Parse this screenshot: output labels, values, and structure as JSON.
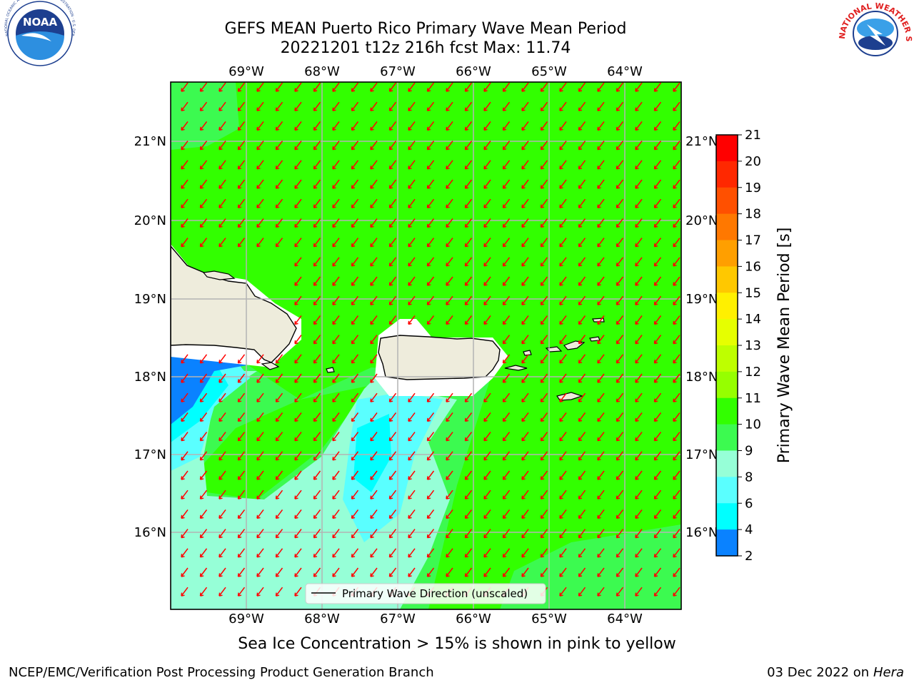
{
  "title_line1": "GEFS MEAN Puerto Rico Primary Wave Mean Period",
  "title_line2": "20221201 t12z 216h fcst   Max: 11.74",
  "caption": "Sea Ice Concentration > 15% is shown in pink to yellow",
  "footer_left": "NCEP/EMC/Verification Post Processing Product Generation Branch",
  "footer_date": "03 Dec 2022 on",
  "footer_machine": "Hera",
  "logo_left": "NOAA",
  "logo_left_ring": "NATIONAL OCEANIC AND ATMOSPHERIC ADMINISTRATION · U.S. DEPARTMENT OF COMMERCE",
  "logo_right_ring": "NATIONAL WEATHER SERVICE",
  "legend_label": "Primary Wave Direction (unscaled)",
  "lon_labels": [
    "69°W",
    "68°W",
    "67°W",
    "66°W",
    "65°W",
    "64°W"
  ],
  "lat_labels": [
    "21°N",
    "20°N",
    "19°N",
    "18°N",
    "17°N",
    "16°N"
  ],
  "colorbar": {
    "label": "Primary Wave Mean Period [s]",
    "ticks": [
      "21",
      "20",
      "19",
      "18",
      "17",
      "16",
      "15",
      "14",
      "13",
      "12",
      "11",
      "10",
      "9",
      "8",
      "6",
      "4",
      "2"
    ],
    "colors": [
      "#ff0000",
      "#ff2800",
      "#ff5000",
      "#ff7800",
      "#ff9f00",
      "#ffc800",
      "#fff000",
      "#e6ff00",
      "#beff00",
      "#96ff00",
      "#32ff00",
      "#3cfa50",
      "#96ffd7",
      "#5affff",
      "#00ffff",
      "#0a82ff",
      "#0000ff"
    ]
  },
  "colors": {
    "wave_11_12": "#32ff00",
    "wave_10_11": "#3cfa50",
    "wave_9_10": "#96ffd7",
    "wave_8_9": "#5affff",
    "wave_6_8": "#00ffff",
    "wave_4_6": "#0a82ff",
    "land": "#eeecdc",
    "arrow": "#ff0000",
    "grid": "#b4b4b4"
  }
}
